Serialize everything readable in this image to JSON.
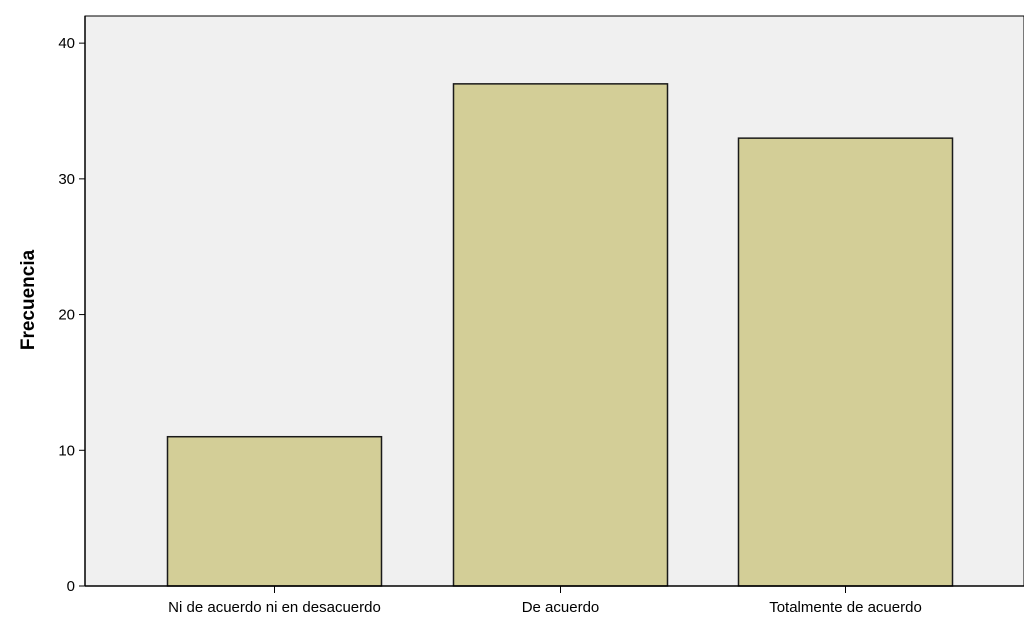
{
  "colors": {
    "plot_background": "#f0f0f0",
    "bar_fill": "#d3ce97",
    "bar_stroke": "#1a1a1a",
    "axis": "#000000"
  },
  "chart_data": {
    "type": "bar",
    "ylabel": "Frecuencia",
    "xlabel": "",
    "categories": [
      "Ni de acuerdo ni en desacuerdo",
      "De acuerdo",
      "Totalmente de acuerdo"
    ],
    "values": [
      11,
      37,
      33
    ],
    "ylim": [
      0,
      42
    ],
    "yticks": [
      0,
      10,
      20,
      30,
      40
    ],
    "grid": false,
    "legend": "none"
  }
}
